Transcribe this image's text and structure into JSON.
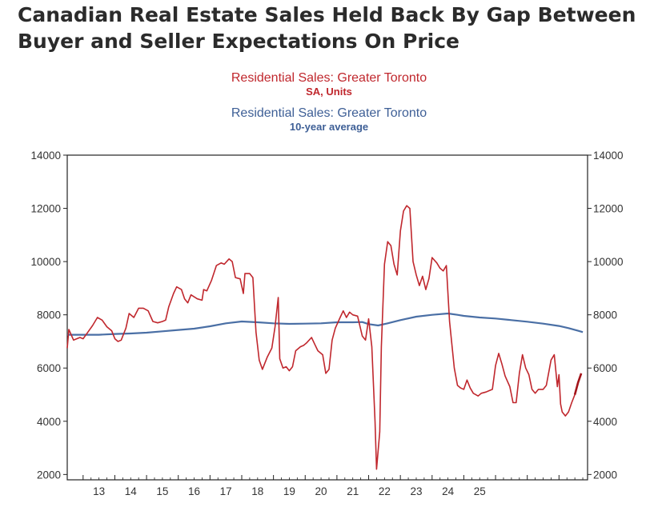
{
  "headline": "Canadian Real Estate Sales Held Back By Gap Between Buyer and Seller Expectations On Price",
  "chart_data": {
    "type": "line",
    "series": [
      {
        "name": "Residential Sales: Greater Toronto",
        "subtitle": "SA, Units",
        "color": "#c0272d",
        "points": [
          [
            2012.5,
            6750
          ],
          [
            2012.55,
            7450
          ],
          [
            2012.7,
            7050
          ],
          [
            2012.9,
            7150
          ],
          [
            2013.0,
            7100
          ],
          [
            2013.15,
            7350
          ],
          [
            2013.3,
            7600
          ],
          [
            2013.45,
            7900
          ],
          [
            2013.6,
            7800
          ],
          [
            2013.75,
            7550
          ],
          [
            2013.9,
            7400
          ],
          [
            2014.0,
            7100
          ],
          [
            2014.1,
            7000
          ],
          [
            2014.2,
            7050
          ],
          [
            2014.35,
            7500
          ],
          [
            2014.45,
            8050
          ],
          [
            2014.6,
            7900
          ],
          [
            2014.75,
            8250
          ],
          [
            2014.9,
            8250
          ],
          [
            2015.05,
            8150
          ],
          [
            2015.2,
            7750
          ],
          [
            2015.35,
            7700
          ],
          [
            2015.5,
            7750
          ],
          [
            2015.6,
            7800
          ],
          [
            2015.7,
            8300
          ],
          [
            2015.85,
            8800
          ],
          [
            2015.95,
            9050
          ],
          [
            2016.1,
            8950
          ],
          [
            2016.2,
            8600
          ],
          [
            2016.3,
            8450
          ],
          [
            2016.4,
            8750
          ],
          [
            2016.6,
            8600
          ],
          [
            2016.75,
            8550
          ],
          [
            2016.8,
            8950
          ],
          [
            2016.9,
            8900
          ],
          [
            2017.05,
            9300
          ],
          [
            2017.2,
            9850
          ],
          [
            2017.35,
            9950
          ],
          [
            2017.45,
            9900
          ],
          [
            2017.6,
            10100
          ],
          [
            2017.7,
            10000
          ],
          [
            2017.8,
            9400
          ],
          [
            2017.95,
            9350
          ],
          [
            2018.05,
            8800
          ],
          [
            2018.1,
            9550
          ],
          [
            2018.25,
            9550
          ],
          [
            2018.35,
            9400
          ],
          [
            2018.45,
            7350
          ],
          [
            2018.55,
            6300
          ],
          [
            2018.65,
            5950
          ],
          [
            2018.8,
            6400
          ],
          [
            2018.95,
            6750
          ],
          [
            2019.05,
            7550
          ],
          [
            2019.15,
            8650
          ],
          [
            2019.2,
            6350
          ],
          [
            2019.3,
            6000
          ],
          [
            2019.4,
            6050
          ],
          [
            2019.5,
            5900
          ],
          [
            2019.6,
            6050
          ],
          [
            2019.7,
            6650
          ],
          [
            2019.85,
            6800
          ],
          [
            2019.95,
            6850
          ],
          [
            2020.05,
            6950
          ],
          [
            2020.2,
            7150
          ],
          [
            2020.3,
            6900
          ],
          [
            2020.4,
            6650
          ],
          [
            2020.55,
            6500
          ],
          [
            2020.65,
            5800
          ],
          [
            2020.75,
            5950
          ],
          [
            2020.85,
            7050
          ],
          [
            2020.95,
            7500
          ],
          [
            2021.1,
            7900
          ],
          [
            2021.2,
            8150
          ],
          [
            2021.3,
            7900
          ],
          [
            2021.4,
            8100
          ],
          [
            2021.5,
            8000
          ],
          [
            2021.65,
            7950
          ],
          [
            2021.8,
            7200
          ],
          [
            2021.9,
            7050
          ],
          [
            2022.0,
            7850
          ],
          [
            2022.1,
            6800
          ],
          [
            2022.2,
            4000
          ],
          [
            2022.25,
            2200
          ],
          [
            2022.35,
            3600
          ],
          [
            2022.4,
            6800
          ],
          [
            2022.5,
            9900
          ],
          [
            2022.6,
            10750
          ],
          [
            2022.7,
            10600
          ],
          [
            2022.8,
            9900
          ],
          [
            2022.9,
            9500
          ],
          [
            2023.0,
            11150
          ],
          [
            2023.1,
            11900
          ],
          [
            2023.2,
            12100
          ],
          [
            2023.3,
            12000
          ],
          [
            2023.4,
            10000
          ],
          [
            2023.5,
            9500
          ],
          [
            2023.6,
            9100
          ],
          [
            2023.7,
            9450
          ],
          [
            2023.8,
            8950
          ],
          [
            2023.9,
            9350
          ],
          [
            2024.0,
            10150
          ],
          [
            2024.15,
            9950
          ],
          [
            2024.25,
            9750
          ],
          [
            2024.35,
            9650
          ],
          [
            2024.45,
            9850
          ],
          [
            2024.55,
            7750
          ],
          [
            2024.7,
            6000
          ],
          [
            2024.8,
            5350
          ],
          [
            2024.9,
            5250
          ],
          [
            2025.0,
            5200
          ],
          [
            2025.1,
            5550
          ],
          [
            2025.2,
            5250
          ],
          [
            2025.3,
            5050
          ],
          [
            2025.45,
            4950
          ],
          [
            2025.55,
            5050
          ],
          [
            2025.7,
            5100
          ],
          [
            2025.8,
            5150
          ],
          [
            2025.9,
            5200
          ],
          [
            2026.0,
            6100
          ],
          [
            2026.1,
            6550
          ],
          [
            2026.2,
            6150
          ],
          [
            2026.3,
            5700
          ],
          [
            2026.45,
            5300
          ],
          [
            2026.55,
            4700
          ],
          [
            2026.65,
            4700
          ],
          [
            2026.75,
            5800
          ],
          [
            2026.85,
            6500
          ],
          [
            2026.95,
            6000
          ],
          [
            2027.05,
            5750
          ],
          [
            2027.15,
            5200
          ],
          [
            2027.25,
            5050
          ],
          [
            2027.35,
            5200
          ],
          [
            2027.5,
            5200
          ],
          [
            2027.6,
            5350
          ],
          [
            2027.75,
            6300
          ],
          [
            2027.85,
            6500
          ],
          [
            2027.95,
            5300
          ],
          [
            2028.0,
            5750
          ],
          [
            2028.05,
            4650
          ],
          [
            2028.1,
            4350
          ],
          [
            2028.2,
            4200
          ],
          [
            2028.3,
            4350
          ],
          [
            2028.4,
            4700
          ],
          [
            2028.5,
            5000
          ],
          [
            2028.6,
            5450
          ],
          [
            2028.7,
            5800
          ]
        ]
      },
      {
        "name": "Residential Sales: Greater Toronto",
        "subtitle": "10-year average",
        "color": "#4a6fa5",
        "points": [
          [
            2012.5,
            7250
          ],
          [
            2013.0,
            7250
          ],
          [
            2013.5,
            7250
          ],
          [
            2014.0,
            7280
          ],
          [
            2014.5,
            7300
          ],
          [
            2015.0,
            7330
          ],
          [
            2015.5,
            7380
          ],
          [
            2016.0,
            7430
          ],
          [
            2016.5,
            7480
          ],
          [
            2017.0,
            7570
          ],
          [
            2017.5,
            7680
          ],
          [
            2018.0,
            7750
          ],
          [
            2018.5,
            7720
          ],
          [
            2019.0,
            7680
          ],
          [
            2019.5,
            7660
          ],
          [
            2020.0,
            7670
          ],
          [
            2020.5,
            7680
          ],
          [
            2021.0,
            7720
          ],
          [
            2021.5,
            7720
          ],
          [
            2021.8,
            7730
          ],
          [
            2022.0,
            7650
          ],
          [
            2022.3,
            7600
          ],
          [
            2022.6,
            7680
          ],
          [
            2023.0,
            7800
          ],
          [
            2023.5,
            7930
          ],
          [
            2024.0,
            8000
          ],
          [
            2024.5,
            8050
          ],
          [
            2024.8,
            8000
          ],
          [
            2025.0,
            7960
          ],
          [
            2025.5,
            7900
          ],
          [
            2026.0,
            7860
          ],
          [
            2026.5,
            7800
          ],
          [
            2027.0,
            7740
          ],
          [
            2027.5,
            7670
          ],
          [
            2028.0,
            7580
          ],
          [
            2028.3,
            7500
          ],
          [
            2028.6,
            7400
          ],
          [
            2028.75,
            7350
          ]
        ]
      }
    ],
    "xlim": [
      2012.5,
      2028.9
    ],
    "ylim": [
      1800,
      14000
    ],
    "y_ticks": [
      2000,
      4000,
      6000,
      8000,
      10000,
      12000,
      14000
    ],
    "x_tick_labels": [
      "13",
      "14",
      "15",
      "16",
      "17",
      "18",
      "19",
      "20",
      "21",
      "22",
      "23",
      "24",
      "25"
    ],
    "axes": "left and right y-axes with identical scale",
    "grid": false
  }
}
